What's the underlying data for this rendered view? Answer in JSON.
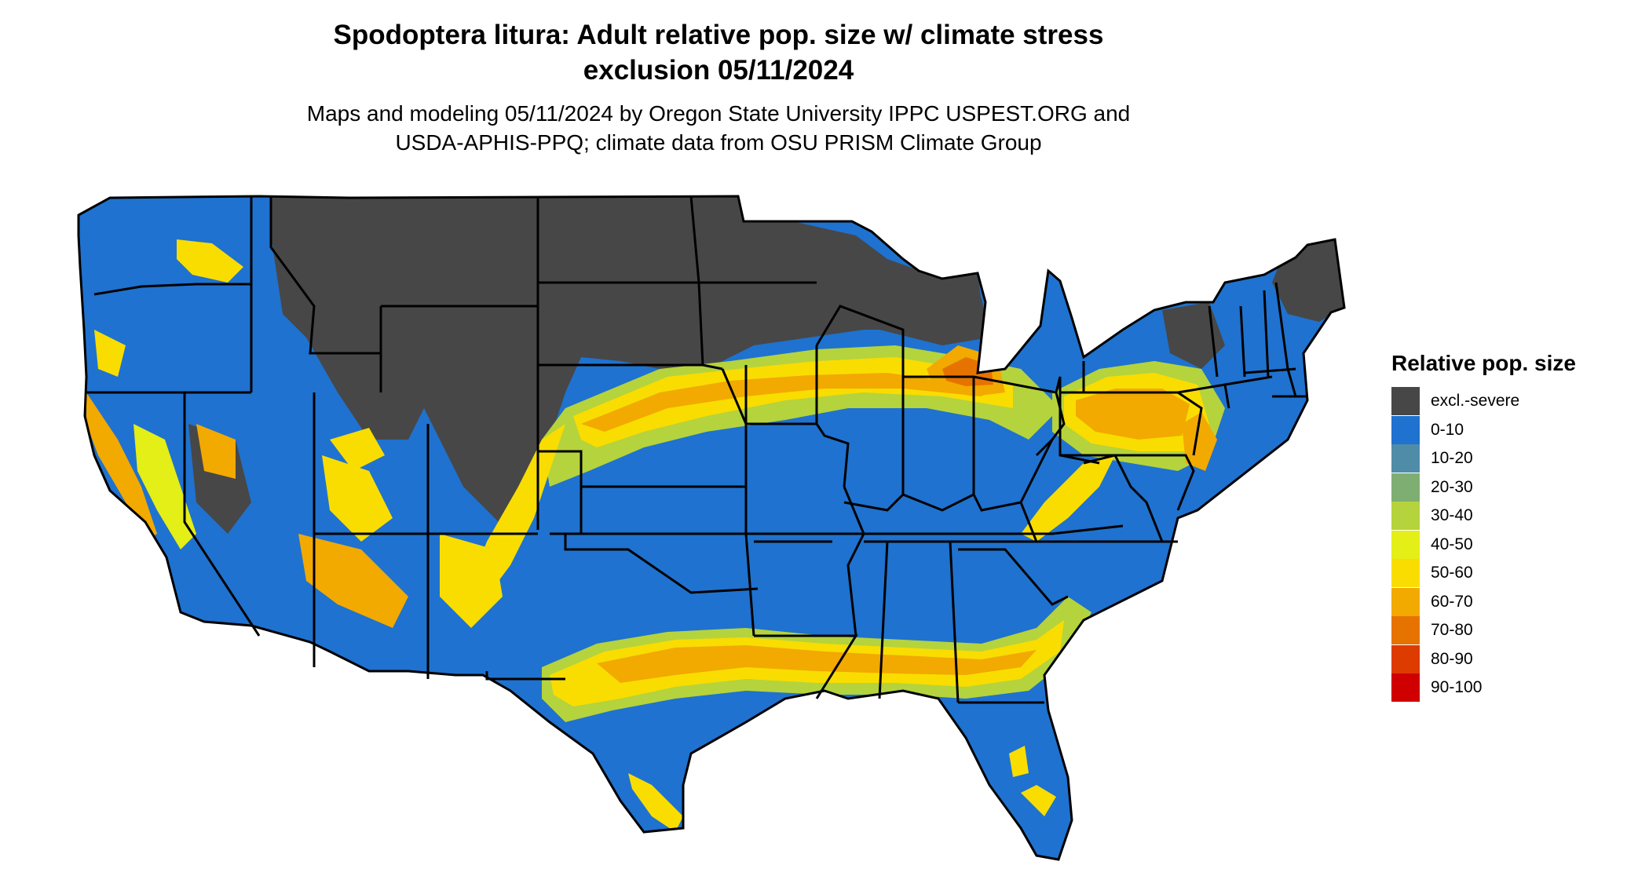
{
  "title": {
    "line1": "Spodoptera litura: Adult relative pop. size w/ climate stress",
    "line2": "exclusion 05/11/2024"
  },
  "subtitle": {
    "line1": "Maps and modeling 05/11/2024 by Oregon State University IPPC USPEST.ORG and",
    "line2": "USDA-APHIS-PPQ; climate data from OSU PRISM Climate Group"
  },
  "legend": {
    "title": "Relative pop. size",
    "items": [
      {
        "label": "excl.-severe",
        "color": "#474747"
      },
      {
        "label": "0-10",
        "color": "#1f72cf"
      },
      {
        "label": "10-20",
        "color": "#4f8ca8"
      },
      {
        "label": "20-30",
        "color": "#7fae72"
      },
      {
        "label": "30-40",
        "color": "#b5d33c"
      },
      {
        "label": "40-50",
        "color": "#e4ee17"
      },
      {
        "label": "50-60",
        "color": "#f9dd00"
      },
      {
        "label": "60-70",
        "color": "#f2a900"
      },
      {
        "label": "70-80",
        "color": "#e67300"
      },
      {
        "label": "80-90",
        "color": "#dd3b00"
      },
      {
        "label": "90-100",
        "color": "#d00000"
      }
    ]
  }
}
